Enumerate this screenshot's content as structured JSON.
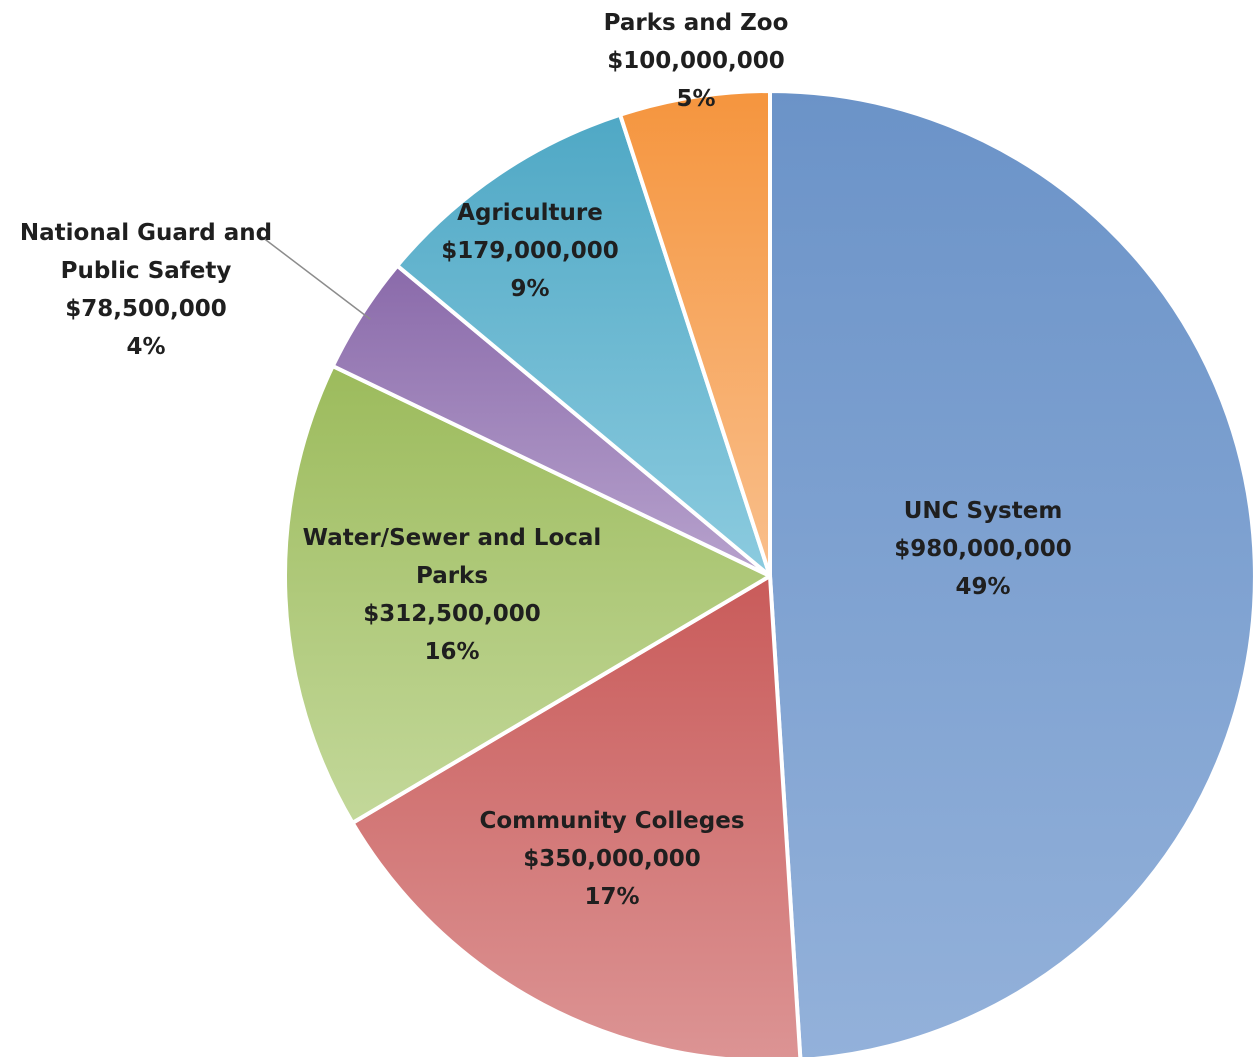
{
  "chart_data": {
    "type": "pie",
    "title": "",
    "slices": [
      {
        "label": "UNC System",
        "value": 980000000,
        "value_text": "$980,000,000",
        "percent_text": "49%",
        "color": "#6b93c8",
        "color_light": "#93b1da"
      },
      {
        "label": "Community Colleges",
        "value": 350000000,
        "value_text": "$350,000,000",
        "percent_text": "17%",
        "color": "#c95b5a",
        "color_light": "#dc9494"
      },
      {
        "label": "Water/Sewer and Local Parks",
        "value": 312500000,
        "value_text": "$312,500,000",
        "percent_text": "16%",
        "color": "#9cbb5c",
        "color_light": "#c3d89a"
      },
      {
        "label": "National Guard and Public Safety",
        "value": 78500000,
        "value_text": "$78,500,000",
        "percent_text": "4%",
        "color": "#8a6aaa",
        "color_light": "#b7a2cd"
      },
      {
        "label": "Agriculture",
        "value": 179000000,
        "value_text": "$179,000,000",
        "percent_text": "9%",
        "color": "#4fa8c5",
        "color_light": "#8ccbdf"
      },
      {
        "label": "Parks and Zoo",
        "value": 100000000,
        "value_text": "$100,000,000",
        "percent_text": "5%",
        "color": "#f5953e",
        "color_light": "#f9bf8c"
      }
    ]
  }
}
